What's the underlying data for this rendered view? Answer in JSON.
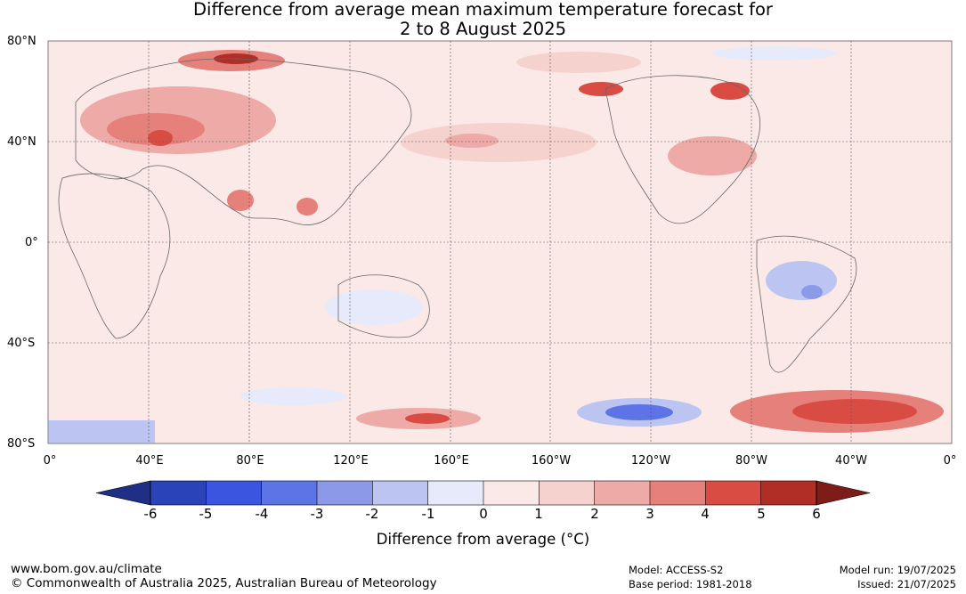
{
  "title_line1": "Difference from average mean maximum temperature forecast for",
  "title_line2": "2 to 8 August 2025",
  "lat_labels": [
    "80°N",
    "40°N",
    "0°",
    "40°S",
    "80°S"
  ],
  "lon_labels": [
    "0°",
    "40°E",
    "80°E",
    "120°E",
    "160°E",
    "160°W",
    "120°W",
    "80°W",
    "40°W",
    "0°"
  ],
  "colorbar": {
    "ticks": [
      "-6",
      "-5",
      "-4",
      "-3",
      "-2",
      "-1",
      "0",
      "1",
      "2",
      "3",
      "4",
      "5",
      "6"
    ],
    "title": "Difference from average (°C)",
    "colors": [
      "#1f2f87",
      "#2a43b8",
      "#3b55e0",
      "#5d74e6",
      "#8a9ae8",
      "#bcc4f2",
      "#e7eafa",
      "#fbe9e7",
      "#f6d2cf",
      "#eeaaa6",
      "#e6807a",
      "#d94c44",
      "#b02e26",
      "#7d1d17"
    ]
  },
  "footer": {
    "website": "www.bom.gov.au/climate",
    "copyright": "© Commonwealth of Australia 2025, Australian Bureau of Meteorology",
    "model": "Model: ACCESS-S2",
    "base_period": "Base period: 1981-2018",
    "model_run": "Model run: 19/07/2025",
    "issued": "Issued: 21/07/2025"
  }
}
